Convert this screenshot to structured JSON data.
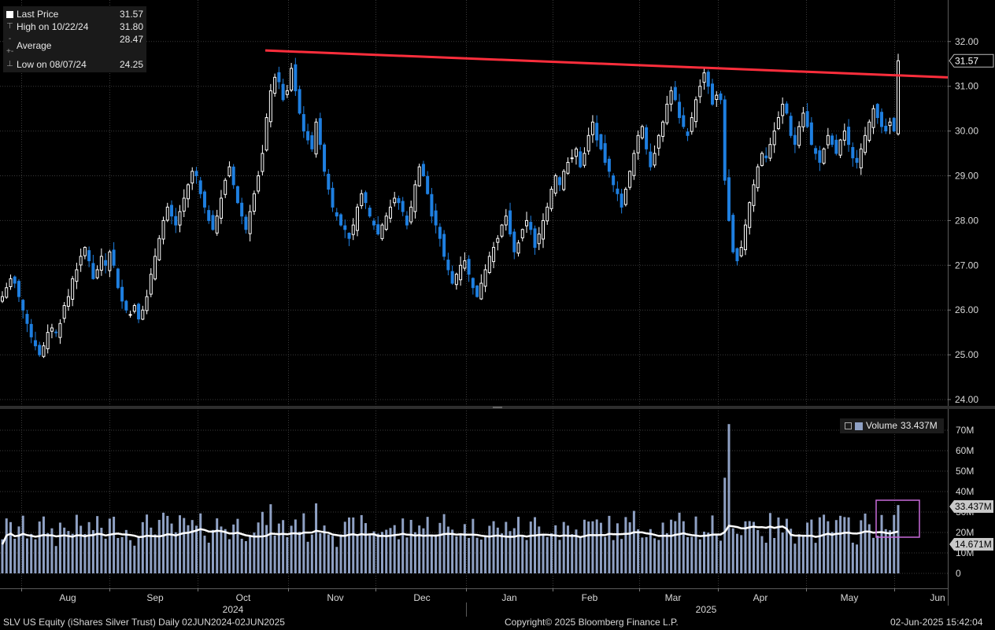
{
  "legend": {
    "last_label": "Last Price",
    "last_value": "31.57",
    "high_label": "High on 10/22/24",
    "high_value": "31.80",
    "avg_label": "Average",
    "avg_value": "28.47",
    "low_label": "Low on 08/07/24",
    "low_value": "24.25"
  },
  "volume_legend": {
    "label": "Volume",
    "value": "33.437M"
  },
  "footer": {
    "left": "SLV US Equity (iShares Silver Trust)  Daily 02JUN2024-02JUN2025",
    "center": "Copyright© 2025 Bloomberg Finance L.P.",
    "right": "02-Jun-2025 15:42:04"
  },
  "colors": {
    "up": "#ffffff",
    "down": "#1e7fe0",
    "trendline": "#ff2e3c",
    "volume": "#8fa1c4",
    "avg_line": "#ffffff",
    "highlight": "#c86bd9",
    "tag_bg": "#c9c9c9"
  },
  "chart_data": [
    {
      "type": "candlestick",
      "x_ticks": [
        "Aug",
        "Sep",
        "Oct",
        "Nov",
        "Dec",
        "Jan",
        "Feb",
        "Mar",
        "Apr",
        "May",
        "Jun"
      ],
      "year_labels": [
        "2024",
        "2025"
      ],
      "y_ticks": [
        "24.00",
        "25.00",
        "26.00",
        "27.00",
        "28.00",
        "29.00",
        "30.00",
        "31.00",
        "32.00"
      ],
      "ylim": [
        24.0,
        32.0
      ],
      "last_price_tag": "31.57",
      "trendline": [
        [
          "2024-10-22",
          31.8
        ],
        [
          "2025-06-02",
          31.2
        ]
      ],
      "close": [
        26.3,
        26.5,
        26.7,
        26.6,
        26.3,
        26.0,
        25.7,
        25.4,
        25.2,
        25.0,
        25.2,
        25.5,
        25.6,
        25.5,
        25.7,
        26.1,
        26.3,
        26.7,
        26.9,
        27.2,
        27.4,
        27.1,
        26.7,
        26.9,
        27.2,
        27.0,
        27.3,
        27.0,
        26.5,
        26.2,
        26.0,
        25.9,
        26.1,
        25.8,
        26.0,
        26.3,
        26.8,
        27.2,
        27.6,
        28.0,
        28.3,
        28.1,
        27.9,
        28.2,
        28.5,
        28.8,
        29.1,
        29.0,
        28.6,
        28.3,
        28.0,
        27.8,
        28.1,
        28.5,
        28.9,
        29.2,
        28.8,
        28.4,
        28.1,
        27.8,
        28.2,
        28.6,
        29.0,
        29.5,
        30.3,
        30.9,
        31.2,
        31.1,
        30.7,
        30.9,
        31.4,
        30.9,
        30.4,
        30.0,
        29.8,
        29.6,
        30.2,
        29.7,
        29.1,
        28.7,
        28.3,
        28.1,
        27.9,
        27.8,
        27.6,
        27.9,
        28.3,
        28.6,
        28.4,
        28.1,
        27.9,
        27.7,
        27.9,
        28.1,
        28.3,
        28.5,
        28.4,
        28.2,
        27.9,
        28.3,
        28.8,
        29.2,
        29.0,
        28.6,
        28.1,
        27.9,
        27.6,
        27.2,
        26.9,
        26.6,
        26.8,
        27.0,
        27.1,
        26.8,
        26.5,
        26.3,
        26.6,
        26.9,
        27.2,
        27.4,
        27.6,
        27.9,
        28.1,
        27.7,
        27.3,
        27.5,
        27.8,
        28.0,
        27.8,
        27.4,
        27.7,
        28.0,
        28.3,
        28.7,
        29.0,
        28.8,
        29.1,
        29.3,
        29.4,
        29.6,
        29.2,
        29.5,
        29.9,
        30.2,
        29.8,
        29.6,
        29.3,
        29.1,
        28.8,
        28.6,
        28.3,
        28.7,
        29.1,
        29.5,
        29.9,
        30.1,
        29.6,
        29.2,
        29.5,
        29.9,
        30.2,
        30.6,
        30.9,
        30.7,
        30.3,
        30.1,
        29.9,
        30.3,
        30.7,
        31.0,
        31.3,
        31.0,
        30.6,
        30.8,
        30.7,
        28.9,
        28.0,
        27.3,
        27.1,
        27.4,
        27.9,
        28.4,
        28.8,
        29.2,
        29.5,
        29.4,
        29.7,
        30.0,
        30.3,
        30.6,
        30.4,
        29.9,
        29.7,
        30.1,
        30.4,
        30.1,
        29.7,
        29.5,
        29.3,
        29.6,
        29.9,
        29.7,
        29.5,
        29.8,
        30.0,
        29.7,
        29.4,
        29.3,
        29.6,
        29.9,
        30.2,
        30.5,
        30.3,
        30.1,
        30.0,
        30.2,
        30.0,
        31.57
      ],
      "volume_series": {
        "name": "Volume",
        "ylim": [
          0,
          75
        ],
        "y_ticks": [
          "0",
          "10M",
          "20M",
          "30M",
          "40M",
          "50M",
          "60M",
          "70M"
        ],
        "last_value": "33.437M",
        "average_value": "14.671M"
      }
    }
  ]
}
